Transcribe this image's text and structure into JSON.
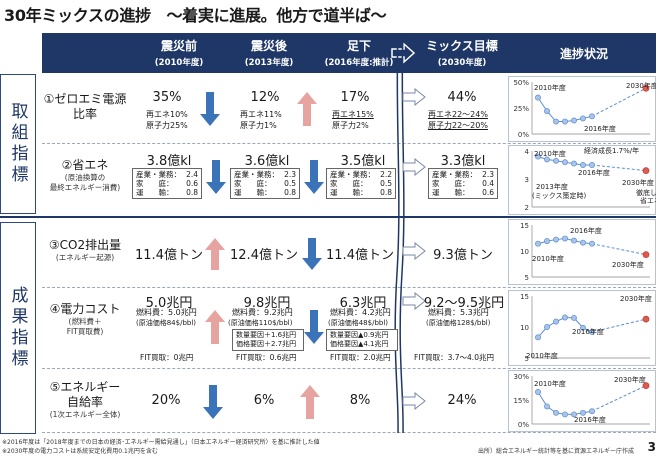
{
  "title": "30年ミックスの進捗　～着実に進展。他方で道半ば～",
  "header": {
    "col1": {
      "main": "震災前",
      "sub": "(2010年度)"
    },
    "col2": {
      "main": "震災後",
      "sub": "(2013年度)"
    },
    "col3": {
      "main": "足下",
      "sub": "(2016年度:推計)"
    },
    "col4": {
      "main": "ミックス目標",
      "sub": "(2030年度)"
    },
    "col5": {
      "main": "進捗状況"
    }
  },
  "side": {
    "group1": "取組指標",
    "group2": "成果指標"
  },
  "rows": {
    "r1": {
      "label": "①ゼロエミ電源",
      "label2": "比率",
      "c1": {
        "value": "35%",
        "s1": "再エネ10%",
        "s2": "原子力25%"
      },
      "c2": {
        "value": "12%",
        "s1": "再エネ11%",
        "s2": "原子力1%"
      },
      "c3": {
        "value": "17%",
        "s1": "再エネ15%",
        "s2": "原子力2%"
      },
      "c4": {
        "value": "44%",
        "s1": "再エネ22～24%",
        "s2": "原子力22～20%"
      }
    },
    "r2": {
      "label": "②省エネ",
      "sub1": "(原油換算の",
      "sub2": "最終エネルギー消費)",
      "c1": {
        "value": "3.8億kl",
        "k1": "産業・業務：",
        "v1": "2.4",
        "k2": "家　　庭：",
        "v2": "0.6",
        "k3": "運　　輸：",
        "v3": "0.8"
      },
      "c2": {
        "value": "3.6億kl",
        "k1": "産業・業務：",
        "v1": "2.3",
        "k2": "家　　庭：",
        "v2": "0.5",
        "k3": "運　　輸：",
        "v3": "0.8"
      },
      "c3": {
        "value": "3.5億kl",
        "k1": "産業・業務：",
        "v1": "2.2",
        "k2": "家　　庭：",
        "v2": "0.5",
        "k3": "運　　輸：",
        "v3": "0.8"
      },
      "c4": {
        "value": "3.3億kl",
        "k1": "産業・業務：",
        "v1": "2.3",
        "k2": "家　　庭：",
        "v2": "0.4",
        "k3": "運　　輸：",
        "v3": "0.6"
      }
    },
    "r3": {
      "label": "③CO2排出量",
      "sub1": "(エネルギー起源)",
      "c1": {
        "value": "11.4億トン"
      },
      "c2": {
        "value": "12.4億トン"
      },
      "c3": {
        "value": "11.4億トン"
      },
      "c4": {
        "value": "9.3億トン"
      }
    },
    "r4": {
      "label": "④電力コスト",
      "sub1": "(燃料費＋",
      "sub2": "FIT買取費)",
      "c1": {
        "value": "5.0兆円",
        "s1": "燃料費：5.0兆円",
        "s2": "(原油価格84$/bbl)",
        "fit": "FIT買取：0兆円"
      },
      "c2": {
        "value": "9.8兆円",
        "s1": "燃料費：9.2兆円",
        "s2": "(原油価格110$/bbl)",
        "b1": "数量要因＋1.6兆円",
        "b2": "価格要因＋2.7兆円",
        "fit": "FIT買取：0.6兆円"
      },
      "c3": {
        "value": "6.3兆円",
        "s1": "燃料費：4.2兆円",
        "s2": "(原油価格48$/bbl)",
        "b1": "数量要因▲0.9兆円",
        "b2": "価格要因▲4.1兆円",
        "fit": "FIT買取：2.0兆円"
      },
      "c4": {
        "value": "9.2～9.5兆円",
        "s1": "燃料費：5.3兆円",
        "s2": "(原油価格128$/bbl)",
        "fit": "FIT買取：3.7～4.0兆円"
      }
    },
    "r5": {
      "label": "⑤エネルギー",
      "label2": "自給率",
      "sub1": "(1次エネルギー全体)",
      "c1": {
        "value": "20%"
      },
      "c2": {
        "value": "6%"
      },
      "c3": {
        "value": "8%"
      },
      "c4": {
        "value": "24%"
      }
    }
  },
  "footer": {
    "note1": "※2016年度は「2018年度までの日本の経済･エネルギー需給見通し」（日本エネルギー経済研究所）を基に推計した値",
    "note2": "※2030年度の電力コストは系統安定化費用0.1兆円を含む",
    "source": "出所）総合エネルギー統計等を基に資源エネルギー庁作成",
    "page": "3"
  },
  "chart_data": [
    {
      "type": "line",
      "name": "zero-emission",
      "yticks": [
        "50%",
        "25%",
        "0%"
      ],
      "ylim": [
        0,
        50
      ],
      "x": [
        2010,
        2011,
        2012,
        2013,
        2014,
        2015,
        2016,
        2030
      ],
      "values": [
        35,
        22,
        12,
        12,
        13,
        15,
        17,
        44
      ],
      "labels": [
        "2010年度",
        "2016年度",
        "2030年度"
      ]
    },
    {
      "type": "line",
      "name": "energy-saving",
      "yticks": [
        "4",
        "3",
        "2"
      ],
      "ylim": [
        2,
        4
      ],
      "x": [
        2010,
        2011,
        2012,
        2013,
        2014,
        2015,
        2016,
        2030
      ],
      "values": [
        3.8,
        3.7,
        3.65,
        3.6,
        3.55,
        3.5,
        3.5,
        3.3
      ],
      "labels": [
        "2010年度",
        "2016年度",
        "2013年度",
        "(ミックス策定時)",
        "2030年度",
        "経済成長1.7%/年",
        "徹底した",
        "省エネ"
      ]
    },
    {
      "type": "line",
      "name": "co2",
      "yticks": [
        "15",
        "10",
        "5"
      ],
      "ylim": [
        5,
        15
      ],
      "x": [
        2010,
        2011,
        2012,
        2013,
        2014,
        2015,
        2016,
        2030
      ],
      "values": [
        11.4,
        11.9,
        12.2,
        12.4,
        12.0,
        11.6,
        11.4,
        9.3
      ],
      "labels": [
        "2016年度",
        "2010年度",
        "2030年度"
      ]
    },
    {
      "type": "line",
      "name": "power-cost",
      "yticks": [
        "15",
        "10",
        "5"
      ],
      "ylim": [
        0,
        15
      ],
      "x": [
        2010,
        2011,
        2012,
        2013,
        2014,
        2015,
        2016,
        2030
      ],
      "values": [
        5.0,
        7.5,
        8.8,
        9.8,
        9.7,
        7.3,
        6.3,
        9.4
      ],
      "labels": [
        "2030年度",
        "2016年度",
        "2010年度"
      ]
    },
    {
      "type": "line",
      "name": "self-sufficiency",
      "yticks": [
        "30%",
        "15%",
        "0%"
      ],
      "ylim": [
        0,
        30
      ],
      "x": [
        2010,
        2011,
        2012,
        2013,
        2014,
        2015,
        2016,
        2030
      ],
      "values": [
        20,
        11,
        7,
        6,
        6,
        7,
        8,
        24
      ],
      "labels": [
        "2010年度",
        "2030年度",
        "2016年度"
      ]
    }
  ]
}
